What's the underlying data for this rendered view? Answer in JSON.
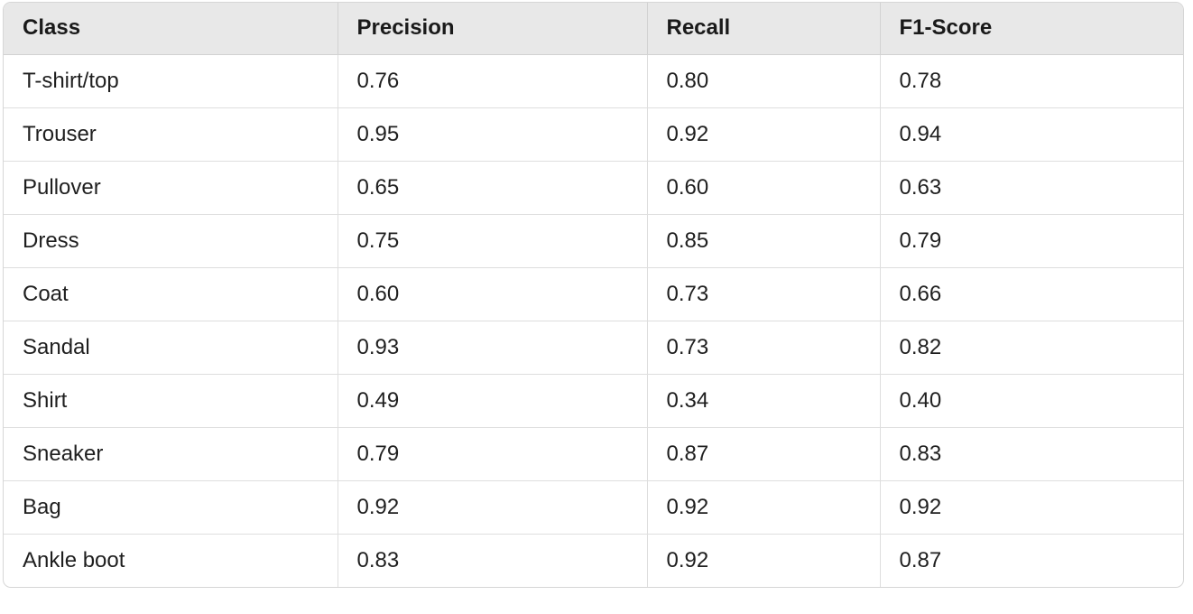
{
  "table": {
    "headers": [
      "Class",
      "Precision",
      "Recall",
      "F1-Score"
    ],
    "rows": [
      [
        "T-shirt/top",
        "0.76",
        "0.80",
        "0.78"
      ],
      [
        "Trouser",
        "0.95",
        "0.92",
        "0.94"
      ],
      [
        "Pullover",
        "0.65",
        "0.60",
        "0.63"
      ],
      [
        "Dress",
        "0.75",
        "0.85",
        "0.79"
      ],
      [
        "Coat",
        "0.60",
        "0.73",
        "0.66"
      ],
      [
        "Sandal",
        "0.93",
        "0.73",
        "0.82"
      ],
      [
        "Shirt",
        "0.49",
        "0.34",
        "0.40"
      ],
      [
        "Sneaker",
        "0.79",
        "0.87",
        "0.83"
      ],
      [
        "Bag",
        "0.92",
        "0.92",
        "0.92"
      ],
      [
        "Ankle boot",
        "0.83",
        "0.92",
        "0.87"
      ]
    ]
  },
  "colors": {
    "header_bg": "#e8e8e8",
    "border": "#d6d6d6",
    "text": "#1f1f1f"
  }
}
